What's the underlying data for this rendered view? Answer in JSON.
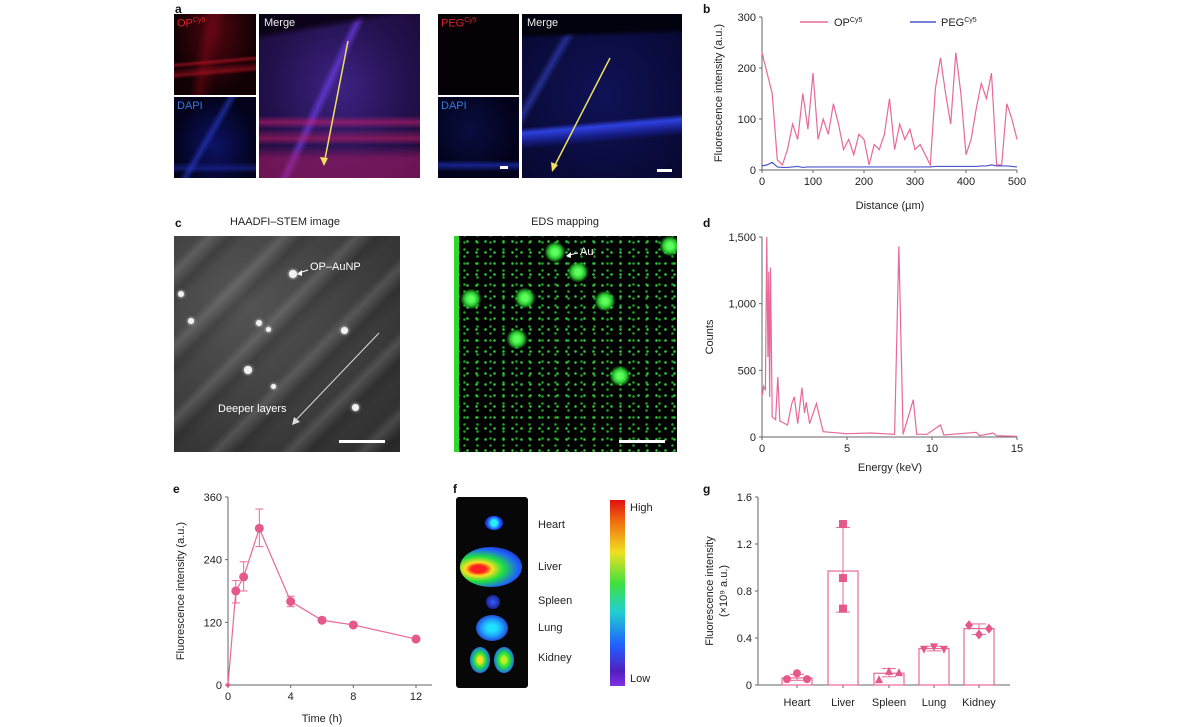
{
  "panels": {
    "a": {
      "label": "a",
      "op_channel": "OP",
      "op_sup": "Cy5",
      "dapi_1": "DAPI",
      "merge_1": "Merge",
      "peg_channel": "PEG",
      "peg_sup": "Cy5",
      "dapi_2": "DAPI",
      "merge_2": "Merge"
    },
    "b": {
      "label": "b"
    },
    "c": {
      "label": "c",
      "left_title": "HAADFI–STEM image",
      "right_title": "EDS mapping",
      "np_annotation": "OP–AuNP",
      "depth_annotation": "Deeper layers",
      "au_annotation": "Au"
    },
    "d": {
      "label": "d"
    },
    "e": {
      "label": "e"
    },
    "f": {
      "label": "f",
      "organs": [
        "Heart",
        "Liver",
        "Spleen",
        "Lung",
        "Kidney"
      ],
      "scale_high": "High",
      "scale_low": "Low"
    },
    "g": {
      "label": "g"
    }
  },
  "colors": {
    "op": "#e8689a",
    "peg": "#4a55cc",
    "marker": "#e4588c",
    "arrow": "#f0e060"
  },
  "chart_data": [
    {
      "id": "b",
      "type": "line",
      "xlabel": "Distance (µm)",
      "ylabel": "Fluorescence intensity (a.u.)",
      "xlim": [
        0,
        500
      ],
      "ylim": [
        0,
        300
      ],
      "xticks": [
        0,
        100,
        200,
        300,
        400,
        500
      ],
      "yticks": [
        0,
        100,
        200,
        300
      ],
      "legend": "top",
      "grid": false,
      "x": [
        0,
        10,
        20,
        30,
        40,
        50,
        60,
        70,
        80,
        90,
        100,
        110,
        120,
        130,
        140,
        150,
        160,
        170,
        180,
        190,
        200,
        210,
        220,
        230,
        240,
        250,
        260,
        270,
        280,
        290,
        300,
        310,
        320,
        330,
        340,
        350,
        360,
        370,
        380,
        390,
        400,
        410,
        420,
        430,
        440,
        450,
        460,
        470,
        480,
        490,
        500
      ],
      "series": [
        {
          "name": "OP",
          "name_sup": "Cy5",
          "values": [
            230,
            190,
            150,
            20,
            10,
            40,
            90,
            60,
            150,
            80,
            190,
            60,
            100,
            70,
            130,
            90,
            40,
            60,
            30,
            70,
            60,
            10,
            50,
            40,
            70,
            140,
            40,
            90,
            60,
            80,
            40,
            50,
            30,
            10,
            160,
            220,
            150,
            90,
            230,
            150,
            30,
            60,
            120,
            170,
            140,
            190,
            10,
            10,
            130,
            100,
            60
          ]
        },
        {
          "name": "PEG",
          "name_sup": "Cy5",
          "values": [
            8,
            10,
            15,
            6,
            5,
            5,
            6,
            7,
            5,
            6,
            6,
            6,
            6,
            6,
            6,
            6,
            6,
            6,
            6,
            6,
            6,
            6,
            6,
            6,
            6,
            6,
            6,
            6,
            6,
            6,
            6,
            6,
            6,
            6,
            7,
            7,
            7,
            7,
            7,
            7,
            7,
            7,
            7,
            8,
            8,
            10,
            8,
            8,
            8,
            7,
            6
          ]
        }
      ]
    },
    {
      "id": "d",
      "type": "line",
      "xlabel": "Energy (keV)",
      "ylabel": "Counts",
      "xlim": [
        0,
        15
      ],
      "ylim": [
        0,
        1500
      ],
      "xticks": [
        0,
        5,
        10,
        15
      ],
      "yticks": [
        0,
        500,
        1000,
        1500
      ],
      "ytick_labels": [
        "0",
        "500",
        "1,000",
        "1,500"
      ],
      "grid": false,
      "points": [
        [
          0,
          300
        ],
        [
          0.1,
          380
        ],
        [
          0.2,
          350
        ],
        [
          0.28,
          1500
        ],
        [
          0.35,
          600
        ],
        [
          0.4,
          1240
        ],
        [
          0.45,
          300
        ],
        [
          0.5,
          1270
        ],
        [
          0.6,
          150
        ],
        [
          0.8,
          130
        ],
        [
          0.93,
          450
        ],
        [
          1.05,
          120
        ],
        [
          1.5,
          90
        ],
        [
          1.75,
          250
        ],
        [
          1.9,
          300
        ],
        [
          2.1,
          100
        ],
        [
          2.35,
          370
        ],
        [
          2.5,
          180
        ],
        [
          2.6,
          260
        ],
        [
          2.8,
          100
        ],
        [
          3.2,
          250
        ],
        [
          3.35,
          170
        ],
        [
          3.6,
          40
        ],
        [
          5,
          25
        ],
        [
          6.4,
          30
        ],
        [
          7.8,
          20
        ],
        [
          8.05,
          1430
        ],
        [
          8.3,
          20
        ],
        [
          8.9,
          280
        ],
        [
          9.1,
          20
        ],
        [
          9.7,
          20
        ],
        [
          10.5,
          90
        ],
        [
          10.7,
          15
        ],
        [
          12.6,
          35
        ],
        [
          12.8,
          10
        ],
        [
          13.6,
          30
        ],
        [
          13.8,
          10
        ],
        [
          15,
          5
        ]
      ]
    },
    {
      "id": "e",
      "type": "line",
      "xlabel": "Time (h)",
      "ylabel": "Fluorescence intensity (a.u.)",
      "xlim": [
        0,
        12
      ],
      "ylim": [
        0,
        360
      ],
      "xticks": [
        0,
        4,
        8,
        12
      ],
      "yticks": [
        0,
        120,
        240,
        360
      ],
      "grid": false,
      "x": [
        0,
        0.5,
        1,
        2,
        4,
        6,
        8,
        12
      ],
      "values": [
        0,
        180,
        207,
        300,
        160,
        124,
        115,
        88
      ],
      "error_low": [
        0,
        157,
        180,
        265,
        150,
        124,
        115,
        88
      ],
      "error_high": [
        0,
        200,
        236,
        337,
        170,
        124,
        115,
        88
      ]
    },
    {
      "id": "g",
      "type": "bar",
      "ylabel": "Fluorescence intensity",
      "ylabel2": "(×10⁹ a.u.)",
      "ylim": [
        0,
        1.6
      ],
      "yticks": [
        0,
        0.4,
        0.8,
        1.2,
        1.6
      ],
      "grid": false,
      "categories": [
        "Heart",
        "Liver",
        "Spleen",
        "Lung",
        "Kidney"
      ],
      "values": [
        0.06,
        0.97,
        0.1,
        0.31,
        0.48
      ],
      "error_low": [
        0.04,
        0.62,
        0.07,
        0.29,
        0.43
      ],
      "error_high": [
        0.09,
        1.34,
        0.14,
        0.33,
        0.52
      ],
      "points": [
        [
          0.05,
          0.1,
          0.05
        ],
        [
          1.37,
          0.91,
          0.65
        ],
        [
          0.05,
          0.12,
          0.11
        ],
        [
          0.3,
          0.32,
          0.3
        ],
        [
          0.51,
          0.43,
          0.48
        ]
      ],
      "markers": [
        "circle",
        "square",
        "triangle-up",
        "triangle-down",
        "diamond"
      ]
    }
  ]
}
